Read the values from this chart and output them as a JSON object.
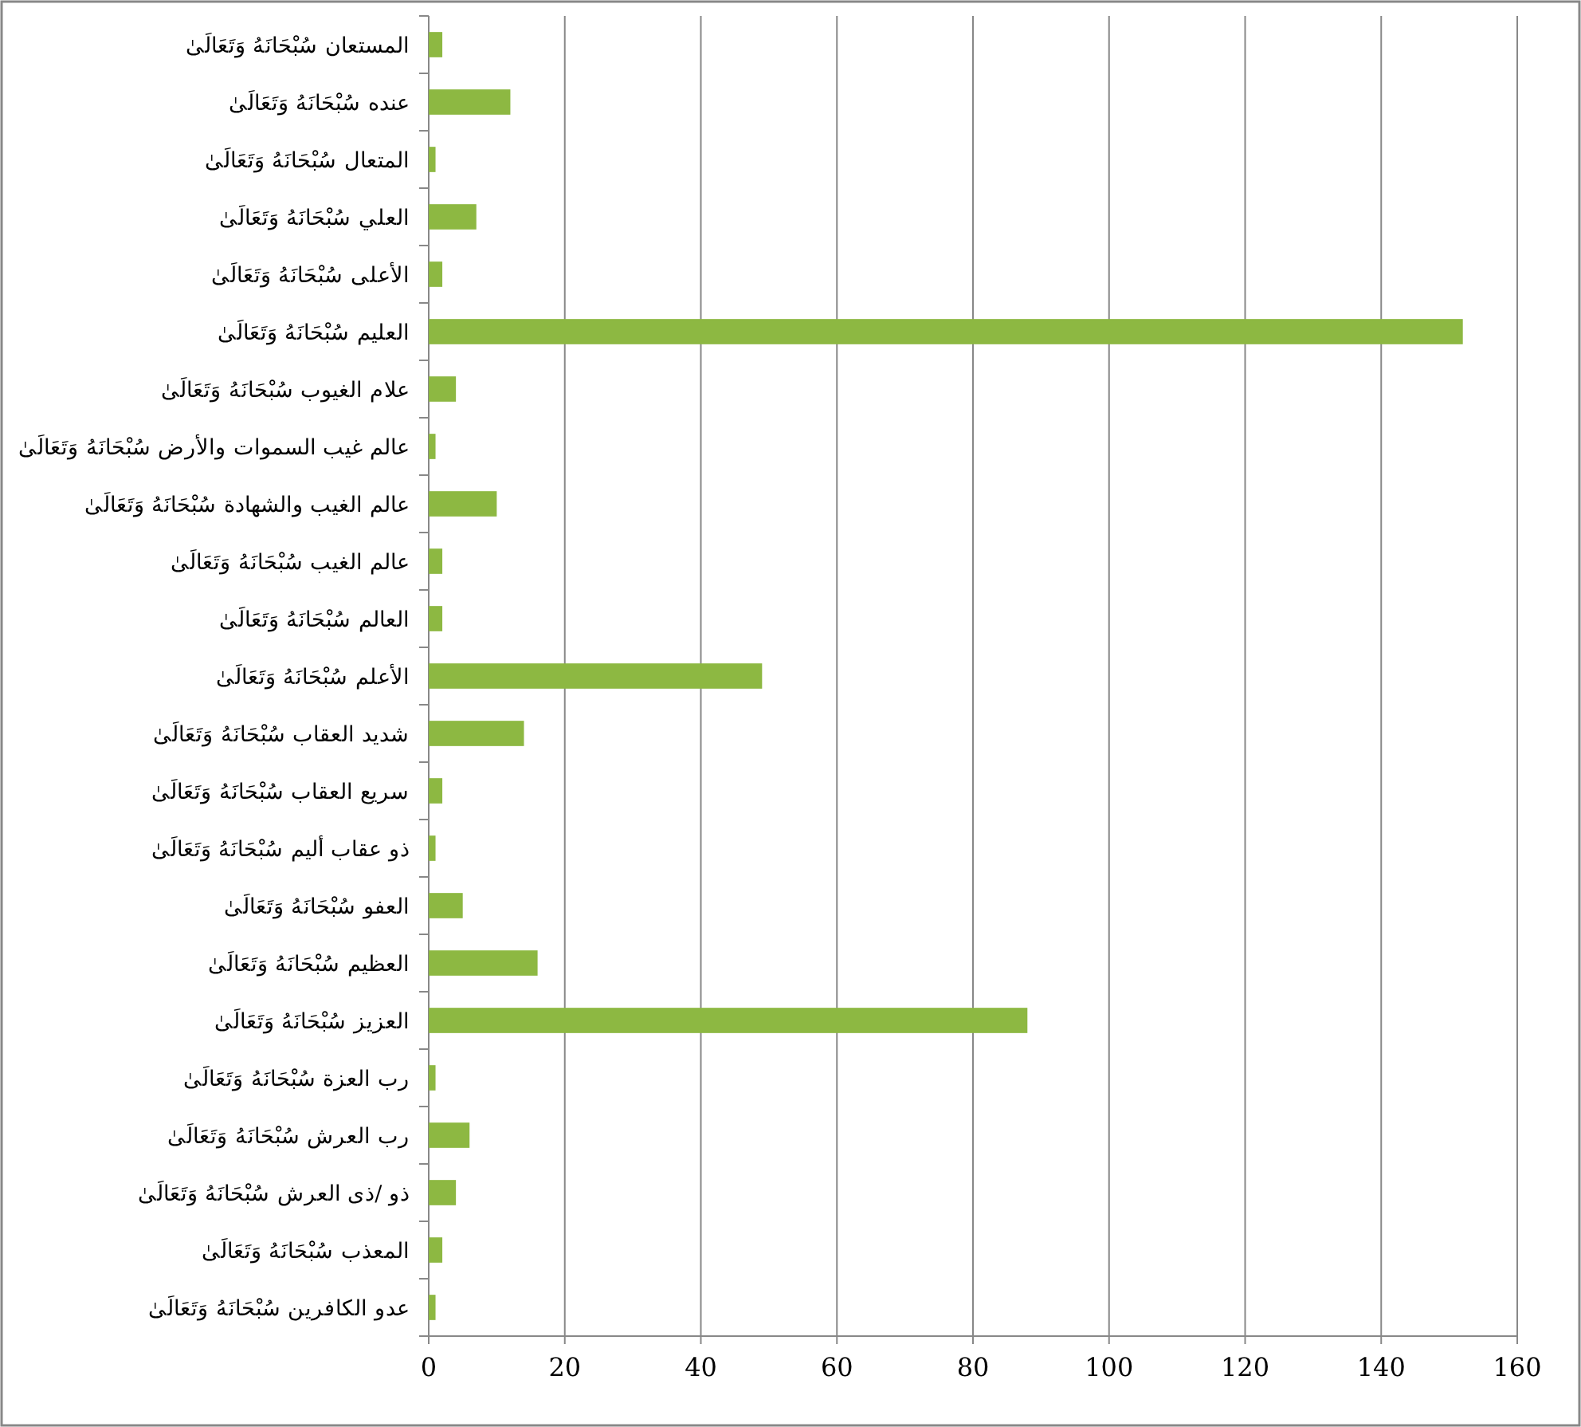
{
  "chart_data": {
    "type": "bar",
    "orientation": "horizontal",
    "categories": [
      "المستعان سُبْحَانَهُ وَتَعَالَىٰ",
      "عنده سُبْحَانَهُ وَتَعَالَىٰ",
      "المتعال سُبْحَانَهُ وَتَعَالَىٰ",
      "العلي سُبْحَانَهُ وَتَعَالَىٰ",
      "الأعلى سُبْحَانَهُ وَتَعَالَىٰ",
      "العليم سُبْحَانَهُ وَتَعَالَىٰ",
      "علام الغيوب سُبْحَانَهُ وَتَعَالَىٰ",
      "عالم غيب السموات والأرض سُبْحَانَهُ وَتَعَالَىٰ",
      "عالم الغيب والشهادة سُبْحَانَهُ وَتَعَالَىٰ",
      "عالم الغيب سُبْحَانَهُ وَتَعَالَىٰ",
      "العالم سُبْحَانَهُ وَتَعَالَىٰ",
      "الأعلم سُبْحَانَهُ وَتَعَالَىٰ",
      "شديد العقاب سُبْحَانَهُ وَتَعَالَىٰ",
      "سريع العقاب سُبْحَانَهُ وَتَعَالَىٰ",
      "ذو عقاب أليم سُبْحَانَهُ وَتَعَالَىٰ",
      "العفو سُبْحَانَهُ وَتَعَالَىٰ",
      "العظيم سُبْحَانَهُ وَتَعَالَىٰ",
      "العزيز سُبْحَانَهُ وَتَعَالَىٰ",
      "رب العزة سُبْحَانَهُ وَتَعَالَىٰ",
      "رب العرش سُبْحَانَهُ وَتَعَالَىٰ",
      "ذو /ذى العرش سُبْحَانَهُ وَتَعَالَىٰ",
      "المعذب سُبْحَانَهُ وَتَعَالَىٰ",
      "عدو الكافرين سُبْحَانَهُ وَتَعَالَىٰ"
    ],
    "values": [
      2,
      12,
      1,
      7,
      2,
      152,
      4,
      1,
      10,
      2,
      2,
      49,
      14,
      2,
      1,
      5,
      16,
      88,
      1,
      6,
      4,
      2,
      1
    ],
    "color": "#8db842",
    "xlim": [
      0,
      160
    ],
    "xticks": [
      0,
      20,
      40,
      60,
      80,
      100,
      120,
      140,
      160
    ],
    "grid": "x"
  }
}
